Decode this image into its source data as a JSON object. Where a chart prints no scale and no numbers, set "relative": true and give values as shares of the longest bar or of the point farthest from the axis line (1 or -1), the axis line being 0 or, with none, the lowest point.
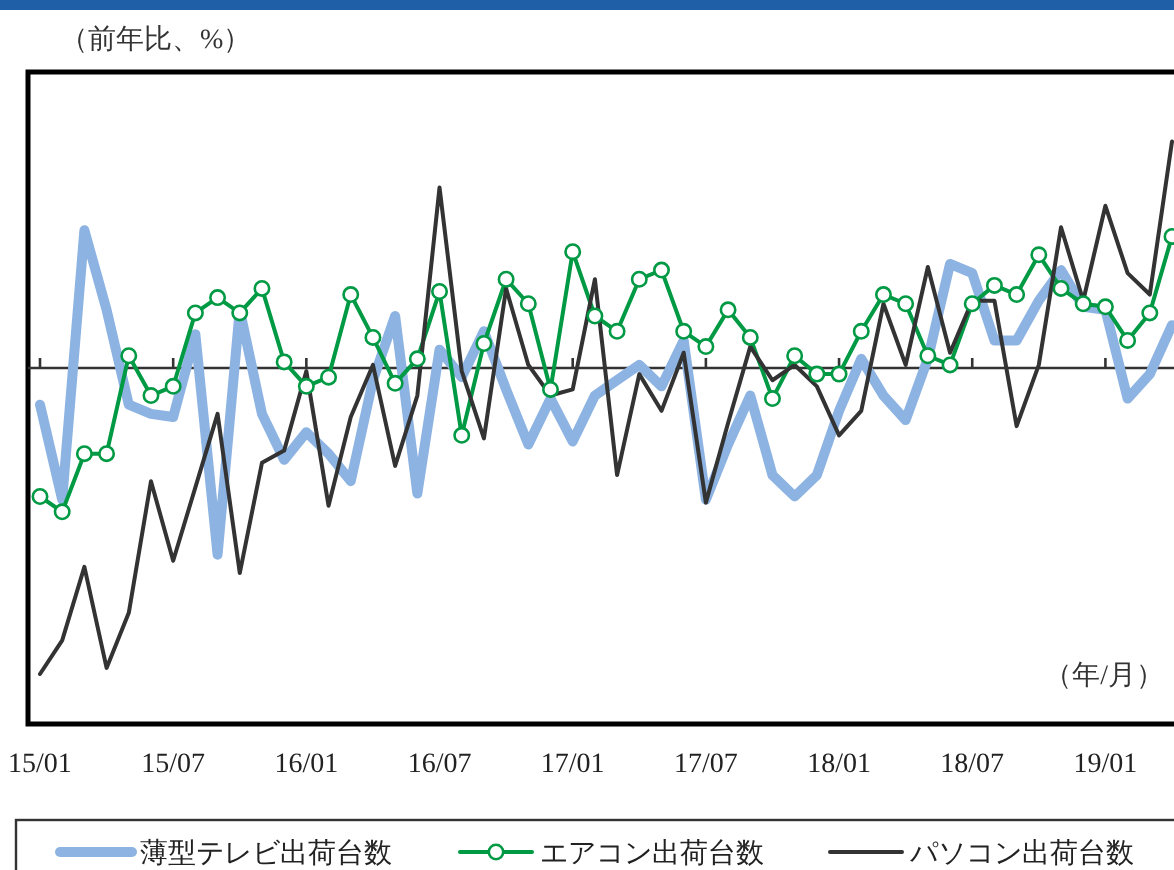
{
  "chart_data": {
    "type": "line",
    "relative": true,
    "ylabel": "（前年比、%）",
    "xlabel": "（年/月）",
    "legend": "bottom",
    "categories": [
      "15/01",
      null,
      null,
      null,
      null,
      null,
      "15/07",
      null,
      null,
      null,
      null,
      null,
      "16/01",
      null,
      null,
      null,
      null,
      null,
      "16/07",
      null,
      null,
      null,
      null,
      null,
      "17/01",
      null,
      null,
      null,
      null,
      null,
      "17/07",
      null,
      null,
      null,
      null,
      null,
      "18/01",
      null,
      null,
      null,
      null,
      null,
      "18/07",
      null,
      null,
      null,
      null,
      null,
      "19/01",
      null,
      null,
      null
    ],
    "series": [
      {
        "name": "薄型テレビ出荷台数",
        "color": "#8db3e2",
        "marker": "none",
        "values": [
          -0.12,
          -0.43,
          0.45,
          0.19,
          -0.12,
          -0.15,
          -0.16,
          0.11,
          -0.61,
          0.19,
          -0.15,
          -0.3,
          -0.21,
          -0.28,
          -0.37,
          -0.04,
          0.17,
          -0.41,
          0.06,
          -0.03,
          0.12,
          -0.07,
          -0.25,
          -0.1,
          -0.24,
          -0.09,
          -0.04,
          0.01,
          -0.06,
          0.09,
          -0.43,
          -0.25,
          -0.09,
          -0.35,
          -0.42,
          -0.35,
          -0.14,
          0.03,
          -0.09,
          -0.17,
          0.03,
          0.34,
          0.31,
          0.09,
          0.09,
          0.22,
          0.32,
          0.2,
          0.19,
          -0.1,
          -0.02,
          0.14
        ]
      },
      {
        "name": "エアコン出荷台数",
        "color": "#009944",
        "marker": "circle",
        "values": [
          -0.42,
          -0.47,
          -0.28,
          -0.28,
          0.04,
          -0.09,
          -0.06,
          0.18,
          0.23,
          0.18,
          0.26,
          0.02,
          -0.06,
          -0.03,
          0.24,
          0.1,
          -0.05,
          0.03,
          0.25,
          -0.22,
          0.08,
          0.29,
          0.21,
          -0.07,
          0.38,
          0.17,
          0.12,
          0.29,
          0.32,
          0.12,
          0.07,
          0.19,
          0.1,
          -0.1,
          0.04,
          -0.02,
          -0.02,
          0.12,
          0.24,
          0.21,
          0.04,
          0.01,
          0.21,
          0.27,
          0.24,
          0.37,
          0.26,
          0.21,
          0.2,
          0.09,
          0.18,
          0.43
        ]
      },
      {
        "name": "パソコン出荷台数",
        "color": "#333333",
        "marker": "none",
        "values": [
          -1,
          -0.89,
          -0.65,
          -0.98,
          -0.8,
          -0.37,
          -0.63,
          -0.39,
          -0.15,
          -0.67,
          -0.31,
          -0.27,
          -0.01,
          -0.45,
          -0.16,
          0.01,
          -0.32,
          -0.09,
          0.59,
          -0.01,
          -0.23,
          0.26,
          0.01,
          -0.09,
          -0.07,
          0.29,
          -0.35,
          -0.02,
          -0.14,
          0.05,
          -0.44,
          -0.18,
          0.07,
          -0.04,
          0.01,
          -0.06,
          -0.22,
          -0.14,
          0.21,
          0.01,
          0.33,
          0.05,
          0.22,
          0.22,
          -0.19,
          0.01,
          0.46,
          0.22,
          0.53,
          0.31,
          0.24,
          0.74
        ]
      }
    ]
  }
}
